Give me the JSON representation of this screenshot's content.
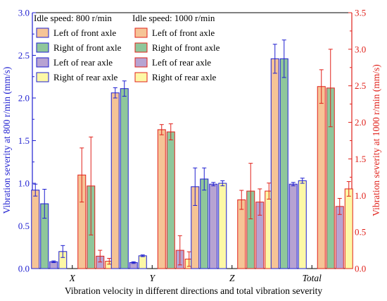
{
  "chart_data": {
    "type": "bar",
    "xlabel": "Vibration velocity in different directions and total vibration severity",
    "ylabel_left": "Vibration severity at 800 r/min (mm/s)",
    "ylabel_right": "Vibration severity at 1000 r/min (mm/s)",
    "ylim_left": [
      0,
      3.0
    ],
    "ylim_right": [
      0,
      3.5
    ],
    "yticks_left": [
      "0.0",
      "0.5",
      "1.0",
      "1.5",
      "2.0",
      "2.5",
      "3.0"
    ],
    "yticks_right": [
      "0.0",
      "0.5",
      "1.0",
      "1.5",
      "2.0",
      "2.5",
      "3.0",
      "3.5"
    ],
    "categories": [
      "X",
      "Y",
      "Z",
      "Total"
    ],
    "legend_placement": "top-left",
    "groups": [
      {
        "title": "Idle speed: 800 r/min",
        "axis": "left",
        "axis_color": "#1f1fd0",
        "series": [
          {
            "name": "Left of front axle",
            "fill": "#f6c496",
            "values": [
              0.92,
              2.06,
              0.96,
              2.46
            ],
            "errors": [
              0.07,
              0.06,
              0.22,
              0.17
            ]
          },
          {
            "name": "Right of front axle",
            "fill": "#8fc79b",
            "values": [
              0.76,
              2.11,
              1.05,
              2.46
            ],
            "errors": [
              0.17,
              0.09,
              0.13,
              0.22
            ]
          },
          {
            "name": "Left of rear axle",
            "fill": "#b7a3d2",
            "values": [
              0.08,
              0.07,
              0.99,
              0.99
            ],
            "errors": [
              0.01,
              0.01,
              0.02,
              0.02
            ]
          },
          {
            "name": "Right of rear axle",
            "fill": "#fdf8a6",
            "values": [
              0.2,
              0.15,
              1.0,
              1.03
            ],
            "errors": [
              0.07,
              0.01,
              0.03,
              0.03
            ]
          }
        ]
      },
      {
        "title": "Idle speed: 1000 r/min",
        "axis": "right",
        "axis_color": "#e0201a",
        "series": [
          {
            "name": "Left of front axle",
            "fill": "#f6c496",
            "values": [
              1.28,
              1.9,
              0.94,
              2.49
            ],
            "errors": [
              0.37,
              0.07,
              0.13,
              0.23
            ]
          },
          {
            "name": "Right of front axle",
            "fill": "#8fc79b",
            "values": [
              1.13,
              1.87,
              1.06,
              2.47
            ],
            "errors": [
              0.67,
              0.11,
              0.38,
              0.53
            ]
          },
          {
            "name": "Left of rear axle",
            "fill": "#b7a3d2",
            "values": [
              0.17,
              0.25,
              0.91,
              0.85
            ],
            "errors": [
              0.08,
              0.2,
              0.18,
              0.11
            ]
          },
          {
            "name": "Right of rear axle",
            "fill": "#fdf8a6",
            "values": [
              0.1,
              0.13,
              1.06,
              1.09
            ],
            "errors": [
              0.04,
              0.1,
              0.11,
              0.1
            ]
          }
        ]
      }
    ]
  }
}
